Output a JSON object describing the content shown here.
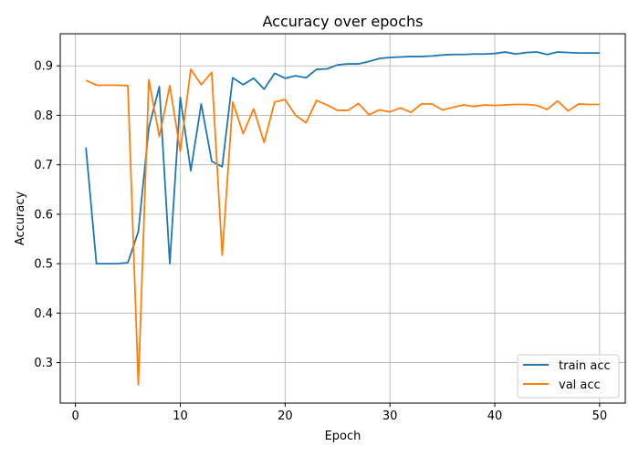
{
  "chart_data": {
    "type": "line",
    "title": "Accuracy over epochs",
    "xlabel": "Epoch",
    "ylabel": "Accuracy",
    "xlim": [
      -1.45,
      52.45
    ],
    "ylim": [
      0.218,
      0.965
    ],
    "xticks": [
      0,
      10,
      20,
      30,
      40,
      50
    ],
    "yticks": [
      0.3,
      0.4,
      0.5,
      0.6,
      0.7,
      0.8,
      0.9
    ],
    "grid": true,
    "legend_position": "lower-right",
    "x": [
      1,
      2,
      3,
      4,
      5,
      6,
      7,
      8,
      9,
      10,
      11,
      12,
      13,
      14,
      15,
      16,
      17,
      18,
      19,
      20,
      21,
      22,
      23,
      24,
      25,
      26,
      27,
      28,
      29,
      30,
      31,
      32,
      33,
      34,
      35,
      36,
      37,
      38,
      39,
      40,
      41,
      42,
      43,
      44,
      45,
      46,
      47,
      48,
      49,
      50
    ],
    "series": [
      {
        "name": "train acc",
        "color": "#1f77b4",
        "values": [
          0.735,
          0.5,
          0.5,
          0.5,
          0.502,
          0.565,
          0.775,
          0.858,
          0.5,
          0.836,
          0.688,
          0.823,
          0.707,
          0.696,
          0.876,
          0.862,
          0.875,
          0.853,
          0.885,
          0.875,
          0.88,
          0.876,
          0.893,
          0.894,
          0.902,
          0.904,
          0.904,
          0.909,
          0.915,
          0.917,
          0.918,
          0.919,
          0.919,
          0.92,
          0.922,
          0.923,
          0.923,
          0.924,
          0.924,
          0.925,
          0.928,
          0.924,
          0.927,
          0.928,
          0.923,
          0.928,
          0.927,
          0.926,
          0.926,
          0.926
        ]
      },
      {
        "name": "val acc",
        "color": "#ff7f0e",
        "values": [
          0.871,
          0.861,
          0.861,
          0.861,
          0.86,
          0.255,
          0.872,
          0.757,
          0.86,
          0.727,
          0.893,
          0.862,
          0.887,
          0.517,
          0.827,
          0.763,
          0.813,
          0.745,
          0.827,
          0.832,
          0.8,
          0.785,
          0.83,
          0.821,
          0.81,
          0.81,
          0.824,
          0.801,
          0.811,
          0.807,
          0.815,
          0.806,
          0.823,
          0.823,
          0.811,
          0.816,
          0.821,
          0.818,
          0.821,
          0.82,
          0.821,
          0.822,
          0.822,
          0.82,
          0.812,
          0.829,
          0.809,
          0.823,
          0.822,
          0.822
        ]
      }
    ]
  }
}
